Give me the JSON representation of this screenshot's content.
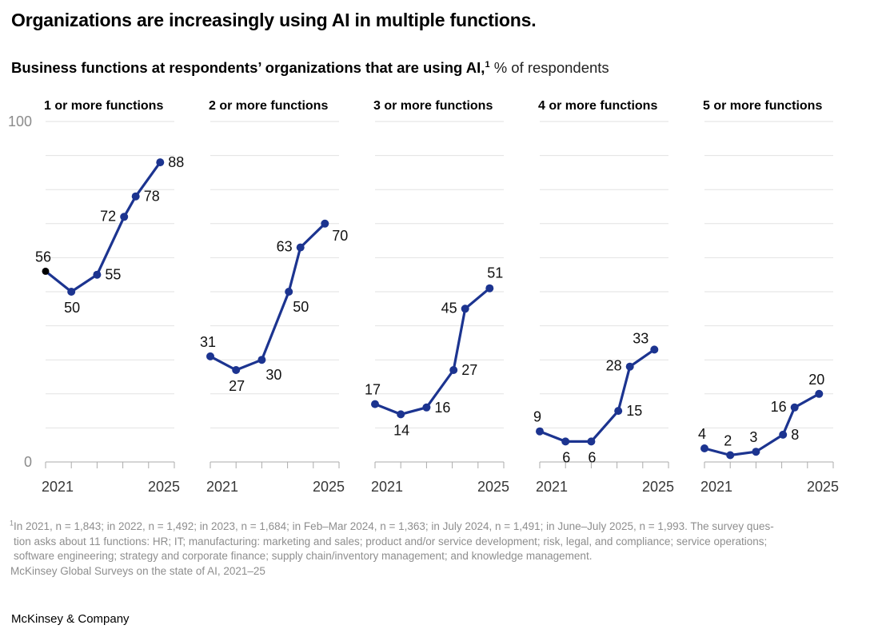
{
  "page": {
    "title": "Organizations are increasingly using AI in multiple functions.",
    "subtitle": {
      "bold": "Business functions at respondents’ organizations that are using AI,",
      "sup": "1",
      "rest": " % of respondents"
    },
    "footnote": {
      "sup": "1",
      "lines": [
        "In 2021, n = 1,843; in 2022, n = 1,492; in 2023, n = 1,684; in Feb–Mar 2024, n = 1,363; in July 2024, n = 1,491; in June–July 2025, n = 1,993. The survey ques-",
        "tion asks about 11 functions: HR; IT; manufacturing: marketing and sales; product and/or service development; risk, legal, and compliance; service operations;",
        "software engineering; strategy and corporate finance; supply chain/inventory management; and knowledge management.",
        "McKinsey Global Surveys on the state of AI, 2021–25"
      ]
    },
    "logo": "McKinsey & Company"
  },
  "chart_data": {
    "type": "line",
    "layout": "small_multiples",
    "unit": "% of respondents",
    "ylim": [
      0,
      100
    ],
    "grid_step": 10,
    "grid_on": true,
    "y_axis_labels": {
      "top": "100",
      "bottom": "0"
    },
    "x_axis": {
      "tick_years": [
        2021,
        2022,
        2023,
        2024,
        2025,
        2026
      ],
      "left_label": "2021",
      "right_label": "2025"
    },
    "x_waves": [
      "2021",
      "2022",
      "2023",
      "Feb–Mar 2024",
      "July 2024",
      "June–July 2025"
    ],
    "x_positions_years": [
      2021,
      2022,
      2023,
      2024.05,
      2024.5,
      2025.45
    ],
    "colors": {
      "line": "#1c3490",
      "first_point_panel_1": "#000000",
      "grid": "#e2e2e2",
      "axis": "#ababab",
      "y_axis_text": "#8b8b8b",
      "x_axis_text": "#373737",
      "data_label_text": "#111111"
    },
    "panels": [
      {
        "title": "1 or more functions",
        "values": [
          56,
          50,
          55,
          72,
          78,
          88
        ],
        "label_pos": [
          "above",
          "below",
          "right",
          "left",
          "right",
          "right"
        ]
      },
      {
        "title": "2 or more functions",
        "values": [
          31,
          27,
          30,
          50,
          63,
          70
        ],
        "label_pos": [
          "above",
          "below",
          "below-right",
          "below-right",
          "left",
          "right-low"
        ]
      },
      {
        "title": "3 or more functions",
        "values": [
          17,
          14,
          16,
          27,
          45,
          51
        ],
        "label_pos": [
          "above",
          "below",
          "right",
          "right",
          "left",
          "above-right"
        ]
      },
      {
        "title": "4 or more functions",
        "values": [
          9,
          6,
          6,
          15,
          28,
          33
        ],
        "label_pos": [
          "above",
          "below",
          "below",
          "right",
          "left",
          "above-left"
        ]
      },
      {
        "title": "5 or more functions",
        "values": [
          4,
          2,
          3,
          8,
          16,
          20
        ],
        "label_pos": [
          "above",
          "above",
          "above",
          "right",
          "left",
          "above"
        ]
      }
    ]
  }
}
